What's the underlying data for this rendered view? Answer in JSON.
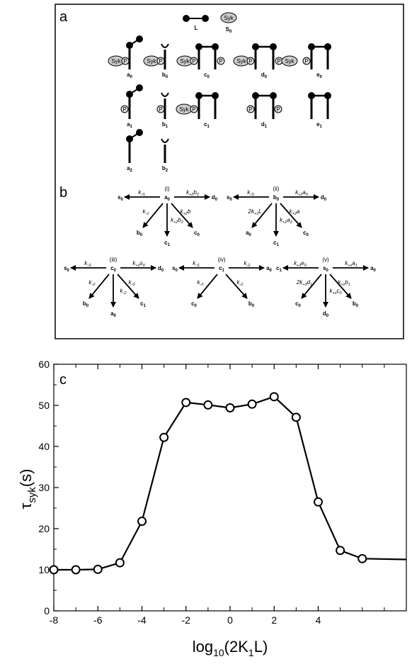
{
  "panel_a": {
    "label": "a",
    "top_row": [
      {
        "name": "L",
        "label": "L"
      },
      {
        "name": "S0",
        "label": "S",
        "sub": "0",
        "text": "Syk"
      }
    ],
    "row0": [
      {
        "label": "a",
        "sub": "0"
      },
      {
        "label": "b",
        "sub": "0"
      },
      {
        "label": "c",
        "sub": "0"
      },
      {
        "label": "d",
        "sub": "0"
      },
      {
        "label": "e",
        "sub": "0"
      }
    ],
    "row1": [
      {
        "label": "a",
        "sub": "1"
      },
      {
        "label": "b",
        "sub": "1"
      },
      {
        "label": "c",
        "sub": "1"
      },
      {
        "label": "d",
        "sub": "1"
      },
      {
        "label": "e",
        "sub": "1"
      }
    ],
    "row2": [
      {
        "label": "a",
        "sub": "2"
      },
      {
        "label": "b",
        "sub": "2"
      }
    ],
    "syk_text": "Syk",
    "p_text": "P"
  },
  "panel_b": {
    "label": "b",
    "schemes": [
      {
        "id": "i",
        "roman": "(i)",
        "center": "a0",
        "left": "s0",
        "left_rate": "k-S",
        "right": "d0",
        "right_rate": "k+2b0",
        "downleft": "b0",
        "downleft_rate": "k-1",
        "down": "c1",
        "down_rate": "k+2b2",
        "downright": "c0",
        "downright_rate": "k+2b"
      },
      {
        "id": "ii",
        "roman": "(ii)",
        "center": "b0",
        "left": "s0",
        "left_rate": "k-S",
        "right": "d0",
        "right_rate": "k+2a0",
        "downleft": "a0",
        "downleft_rate": "2k+1L",
        "down": "c1",
        "down_rate": "k+2a2",
        "downright": "c0",
        "downright_rate": "k+2a"
      },
      {
        "id": "iii",
        "roman": "(iii)",
        "center": "c0",
        "left": "s0",
        "left_rate": "k-S",
        "right": "d0",
        "right_rate": "k+3s0",
        "downleft": "b0",
        "downleft_rate": "k-2",
        "down": "a0",
        "down_rate": "k-2",
        "downright": "c1",
        "downright_rate": "k-0"
      },
      {
        "id": "iv",
        "roman": "(iv)",
        "center": "c1",
        "left": "s0",
        "left_rate": "k-S",
        "right": "a0",
        "right_rate": "k-2",
        "downleft": "c0",
        "downleft_rate": "k-0",
        "downright": "b0",
        "downright_rate": "k-2"
      },
      {
        "id": "v",
        "roman": "(v)",
        "center": "s0",
        "left": "c1",
        "left_rate": "k+3e0",
        "right": "a0",
        "right_rate": "k+sa1",
        "downleft": "c0",
        "downleft_rate": "2k+3d1",
        "down": "d0",
        "down_rate": "k+sc0",
        "downright": "b0",
        "downright_rate": "k+sb1"
      }
    ]
  },
  "chart_data": {
    "type": "line",
    "panel_label": "c",
    "xlabel": "log10(2K1L)",
    "ylabel": "τsyk(s)",
    "x": [
      -8,
      -7,
      -6,
      -5,
      -4,
      -3,
      -2,
      -1,
      0,
      1,
      2,
      3,
      4,
      5,
      6,
      8
    ],
    "series": [
      {
        "values": [
          10,
          10,
          10.1,
          11.7,
          21.8,
          42.2,
          50.7,
          50.1,
          49.4,
          50.3,
          52.1,
          47.1,
          26.5,
          14.7,
          12.7,
          12.5
        ],
        "markers": [
          true,
          true,
          true,
          true,
          true,
          true,
          true,
          true,
          true,
          true,
          true,
          true,
          true,
          true,
          true,
          false
        ]
      }
    ],
    "xlim": [
      -8,
      8
    ],
    "ylim": [
      0,
      60
    ],
    "xticks": [
      -8,
      -6,
      -4,
      -2,
      0,
      2,
      4
    ],
    "xtick_labels": [
      "-8",
      "-6",
      "-4",
      "-2",
      "0",
      "2",
      "4"
    ],
    "yticks": [
      0,
      10,
      20,
      30,
      40,
      50,
      60
    ],
    "ytick_labels": [
      "0",
      "10",
      "20",
      "30",
      "40",
      "50",
      "60"
    ],
    "xminor": [
      -7,
      -5,
      -3,
      -1,
      1,
      3,
      5,
      6,
      7
    ],
    "yminor": [
      5,
      15,
      25,
      35,
      45,
      55
    ],
    "grid": false,
    "legend": "none",
    "line_color": "#000000",
    "marker": "open-circle"
  }
}
